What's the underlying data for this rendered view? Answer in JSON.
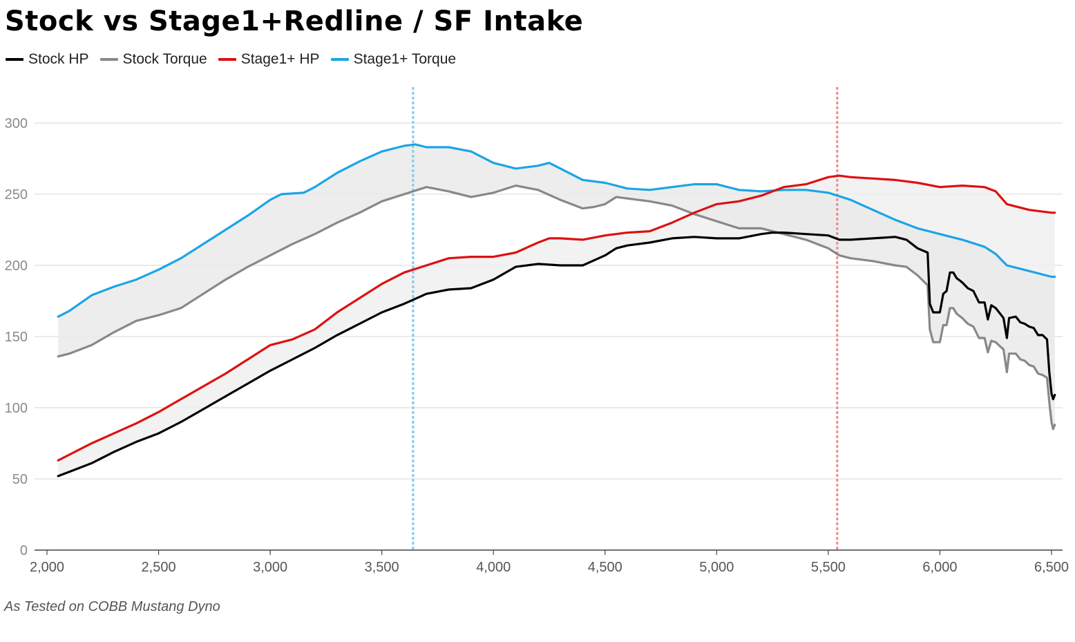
{
  "chart_data": {
    "type": "line",
    "title": "Stock vs Stage1+Redline / SF Intake",
    "xlabel": "",
    "ylabel": "",
    "xlim": [
      2000,
      6500
    ],
    "ylim": [
      0,
      330
    ],
    "x_ticks": [
      2000,
      2500,
      3000,
      3500,
      4000,
      4500,
      5000,
      5500,
      6000,
      6500
    ],
    "x_tick_labels": [
      "2,000",
      "2,500",
      "3,000",
      "3,500",
      "4,000",
      "4,500",
      "5,000",
      "5,500",
      "6,000",
      "6,500"
    ],
    "y_ticks": [
      0,
      50,
      100,
      150,
      200,
      250,
      300
    ],
    "y_tick_labels": [
      "0",
      "50",
      "100",
      "150",
      "200",
      "250",
      "300"
    ],
    "grid": "horizontal",
    "legend_position": "top-left",
    "vlines": [
      {
        "x": 3640,
        "color": "#7ecbf0",
        "style": "dotted"
      },
      {
        "x": 5540,
        "color": "#f08a8a",
        "style": "dotted"
      }
    ],
    "fills": [
      {
        "between": [
          "Stock HP",
          "Stage1+ HP"
        ],
        "color": "#efefef"
      },
      {
        "between": [
          "Stock Torque",
          "Stage1+ Torque"
        ],
        "color": "#e9e9e9"
      }
    ],
    "series": [
      {
        "name": "Stock HP",
        "color": "#000000",
        "points": [
          [
            2050,
            52
          ],
          [
            2100,
            55
          ],
          [
            2200,
            61
          ],
          [
            2300,
            69
          ],
          [
            2400,
            76
          ],
          [
            2500,
            82
          ],
          [
            2600,
            90
          ],
          [
            2700,
            99
          ],
          [
            2800,
            108
          ],
          [
            2900,
            117
          ],
          [
            3000,
            126
          ],
          [
            3100,
            134
          ],
          [
            3200,
            142
          ],
          [
            3300,
            151
          ],
          [
            3400,
            159
          ],
          [
            3500,
            167
          ],
          [
            3600,
            173
          ],
          [
            3700,
            180
          ],
          [
            3800,
            183
          ],
          [
            3900,
            184
          ],
          [
            4000,
            190
          ],
          [
            4100,
            199
          ],
          [
            4200,
            201
          ],
          [
            4300,
            200
          ],
          [
            4400,
            200
          ],
          [
            4500,
            207
          ],
          [
            4550,
            212
          ],
          [
            4600,
            214
          ],
          [
            4700,
            216
          ],
          [
            4800,
            219
          ],
          [
            4900,
            220
          ],
          [
            5000,
            219
          ],
          [
            5100,
            219
          ],
          [
            5200,
            222
          ],
          [
            5250,
            223
          ],
          [
            5300,
            223
          ],
          [
            5400,
            222
          ],
          [
            5500,
            221
          ],
          [
            5550,
            218
          ],
          [
            5600,
            218
          ],
          [
            5700,
            219
          ],
          [
            5800,
            220
          ],
          [
            5850,
            218
          ],
          [
            5900,
            212
          ],
          [
            5945,
            209
          ],
          [
            5955,
            173
          ],
          [
            5970,
            167
          ],
          [
            6000,
            167
          ],
          [
            6015,
            180
          ],
          [
            6030,
            182
          ],
          [
            6045,
            195
          ],
          [
            6060,
            195
          ],
          [
            6075,
            191
          ],
          [
            6100,
            188
          ],
          [
            6125,
            184
          ],
          [
            6150,
            182
          ],
          [
            6175,
            174
          ],
          [
            6200,
            174
          ],
          [
            6215,
            162
          ],
          [
            6230,
            172
          ],
          [
            6250,
            170
          ],
          [
            6270,
            166
          ],
          [
            6285,
            163
          ],
          [
            6300,
            149
          ],
          [
            6310,
            163
          ],
          [
            6340,
            164
          ],
          [
            6360,
            160
          ],
          [
            6380,
            159
          ],
          [
            6400,
            157
          ],
          [
            6420,
            156
          ],
          [
            6440,
            151
          ],
          [
            6460,
            151
          ],
          [
            6480,
            148
          ],
          [
            6490,
            125
          ],
          [
            6500,
            110
          ],
          [
            6507,
            106
          ],
          [
            6515,
            109
          ]
        ]
      },
      {
        "name": "Stock Torque",
        "color": "#888888",
        "points": [
          [
            2050,
            136
          ],
          [
            2100,
            138
          ],
          [
            2200,
            144
          ],
          [
            2300,
            153
          ],
          [
            2400,
            161
          ],
          [
            2500,
            165
          ],
          [
            2600,
            170
          ],
          [
            2700,
            180
          ],
          [
            2800,
            190
          ],
          [
            2900,
            199
          ],
          [
            3000,
            207
          ],
          [
            3100,
            215
          ],
          [
            3200,
            222
          ],
          [
            3300,
            230
          ],
          [
            3400,
            237
          ],
          [
            3500,
            245
          ],
          [
            3600,
            250
          ],
          [
            3700,
            255
          ],
          [
            3800,
            252
          ],
          [
            3900,
            248
          ],
          [
            4000,
            251
          ],
          [
            4100,
            256
          ],
          [
            4200,
            253
          ],
          [
            4300,
            246
          ],
          [
            4400,
            240
          ],
          [
            4450,
            241
          ],
          [
            4500,
            243
          ],
          [
            4550,
            248
          ],
          [
            4600,
            247
          ],
          [
            4700,
            245
          ],
          [
            4800,
            242
          ],
          [
            4900,
            236
          ],
          [
            5000,
            231
          ],
          [
            5100,
            226
          ],
          [
            5200,
            226
          ],
          [
            5300,
            222
          ],
          [
            5400,
            218
          ],
          [
            5500,
            212
          ],
          [
            5550,
            207
          ],
          [
            5600,
            205
          ],
          [
            5700,
            203
          ],
          [
            5800,
            200
          ],
          [
            5850,
            199
          ],
          [
            5900,
            193
          ],
          [
            5945,
            186
          ],
          [
            5955,
            155
          ],
          [
            5970,
            146
          ],
          [
            6000,
            146
          ],
          [
            6015,
            158
          ],
          [
            6030,
            158
          ],
          [
            6045,
            170
          ],
          [
            6060,
            170
          ],
          [
            6075,
            166
          ],
          [
            6100,
            163
          ],
          [
            6125,
            159
          ],
          [
            6150,
            157
          ],
          [
            6175,
            149
          ],
          [
            6200,
            149
          ],
          [
            6215,
            139
          ],
          [
            6230,
            147
          ],
          [
            6250,
            146
          ],
          [
            6270,
            143
          ],
          [
            6285,
            141
          ],
          [
            6300,
            125
          ],
          [
            6310,
            138
          ],
          [
            6340,
            138
          ],
          [
            6360,
            134
          ],
          [
            6380,
            133
          ],
          [
            6400,
            130
          ],
          [
            6420,
            129
          ],
          [
            6440,
            124
          ],
          [
            6460,
            123
          ],
          [
            6480,
            121
          ],
          [
            6490,
            104
          ],
          [
            6500,
            90
          ],
          [
            6507,
            85
          ],
          [
            6515,
            88
          ]
        ]
      },
      {
        "name": "Stage1+ HP",
        "color": "#dd1010",
        "points": [
          [
            2050,
            63
          ],
          [
            2100,
            67
          ],
          [
            2200,
            75
          ],
          [
            2300,
            82
          ],
          [
            2400,
            89
          ],
          [
            2500,
            97
          ],
          [
            2600,
            106
          ],
          [
            2700,
            115
          ],
          [
            2800,
            124
          ],
          [
            2900,
            134
          ],
          [
            3000,
            144
          ],
          [
            3100,
            148
          ],
          [
            3200,
            155
          ],
          [
            3300,
            167
          ],
          [
            3400,
            177
          ],
          [
            3500,
            187
          ],
          [
            3600,
            195
          ],
          [
            3700,
            200
          ],
          [
            3800,
            205
          ],
          [
            3900,
            206
          ],
          [
            4000,
            206
          ],
          [
            4100,
            209
          ],
          [
            4200,
            216
          ],
          [
            4250,
            219
          ],
          [
            4300,
            219
          ],
          [
            4400,
            218
          ],
          [
            4500,
            221
          ],
          [
            4600,
            223
          ],
          [
            4700,
            224
          ],
          [
            4800,
            230
          ],
          [
            4900,
            237
          ],
          [
            5000,
            243
          ],
          [
            5100,
            245
          ],
          [
            5200,
            249
          ],
          [
            5300,
            255
          ],
          [
            5400,
            257
          ],
          [
            5500,
            262
          ],
          [
            5550,
            263
          ],
          [
            5600,
            262
          ],
          [
            5700,
            261
          ],
          [
            5800,
            260
          ],
          [
            5900,
            258
          ],
          [
            6000,
            255
          ],
          [
            6100,
            256
          ],
          [
            6200,
            255
          ],
          [
            6250,
            252
          ],
          [
            6300,
            243
          ],
          [
            6400,
            239
          ],
          [
            6500,
            237
          ],
          [
            6515,
            237
          ]
        ]
      },
      {
        "name": "Stage1+ Torque",
        "color": "#1aa5e6",
        "points": [
          [
            2050,
            164
          ],
          [
            2100,
            168
          ],
          [
            2200,
            179
          ],
          [
            2300,
            185
          ],
          [
            2400,
            190
          ],
          [
            2500,
            197
          ],
          [
            2600,
            205
          ],
          [
            2700,
            215
          ],
          [
            2800,
            225
          ],
          [
            2900,
            235
          ],
          [
            3000,
            246
          ],
          [
            3050,
            250
          ],
          [
            3150,
            251
          ],
          [
            3200,
            255
          ],
          [
            3300,
            265
          ],
          [
            3400,
            273
          ],
          [
            3500,
            280
          ],
          [
            3600,
            284
          ],
          [
            3650,
            285
          ],
          [
            3700,
            283
          ],
          [
            3800,
            283
          ],
          [
            3900,
            280
          ],
          [
            4000,
            272
          ],
          [
            4100,
            268
          ],
          [
            4200,
            270
          ],
          [
            4250,
            272
          ],
          [
            4300,
            268
          ],
          [
            4400,
            260
          ],
          [
            4500,
            258
          ],
          [
            4600,
            254
          ],
          [
            4700,
            253
          ],
          [
            4800,
            255
          ],
          [
            4900,
            257
          ],
          [
            5000,
            257
          ],
          [
            5100,
            253
          ],
          [
            5200,
            252
          ],
          [
            5300,
            253
          ],
          [
            5400,
            253
          ],
          [
            5500,
            251
          ],
          [
            5600,
            246
          ],
          [
            5700,
            239
          ],
          [
            5800,
            232
          ],
          [
            5900,
            226
          ],
          [
            6000,
            222
          ],
          [
            6100,
            218
          ],
          [
            6200,
            213
          ],
          [
            6250,
            208
          ],
          [
            6300,
            200
          ],
          [
            6400,
            196
          ],
          [
            6500,
            192
          ],
          [
            6515,
            192
          ]
        ]
      }
    ],
    "footnote": "As Tested on COBB Mustang Dyno"
  }
}
